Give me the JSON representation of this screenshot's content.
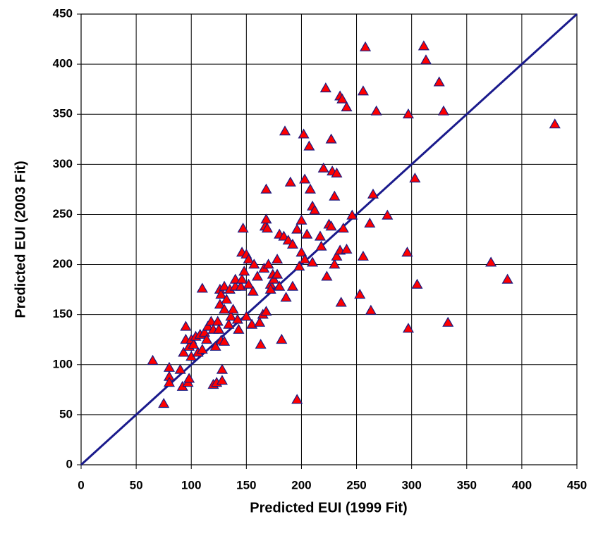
{
  "chart_data": {
    "type": "scatter",
    "x_label": "Predicted EUI (1999 Fit)",
    "y_label": "Predicted EUI (2003 Fit)",
    "xlim": [
      0,
      450
    ],
    "ylim": [
      0,
      450
    ],
    "xticks": [
      0,
      50,
      100,
      150,
      200,
      250,
      300,
      350,
      400,
      450
    ],
    "yticks": [
      0,
      50,
      100,
      150,
      200,
      250,
      300,
      350,
      400,
      450
    ],
    "grid": true,
    "series": [
      {
        "color": "#ff0000",
        "edge_color": "#1a1a80",
        "x": [
          65,
          75,
          80,
          80,
          80,
          90,
          92,
          93,
          95,
          95,
          97,
          98,
          98,
          100,
          100,
          102,
          104,
          106,
          108,
          110,
          110,
          112,
          114,
          115,
          118,
          120,
          120,
          122,
          123,
          124,
          125,
          126,
          126,
          127,
          127,
          128,
          128,
          130,
          130,
          130,
          132,
          134,
          135,
          136,
          138,
          140,
          140,
          142,
          143,
          145,
          146,
          146,
          147,
          148,
          150,
          150,
          152,
          152,
          155,
          156,
          157,
          160,
          162,
          163,
          165,
          166,
          167,
          168,
          168,
          168,
          169,
          170,
          172,
          172,
          174,
          175,
          178,
          178,
          180,
          180,
          182,
          184,
          185,
          186,
          188,
          190,
          192,
          192,
          196,
          196,
          198,
          200,
          200,
          202,
          203,
          203,
          205,
          207,
          208,
          210,
          210,
          212,
          217,
          218,
          220,
          222,
          223,
          225,
          227,
          227,
          228,
          230,
          230,
          232,
          232,
          235,
          235,
          236,
          237,
          238,
          241,
          241,
          246,
          253,
          256,
          256,
          258,
          262,
          263,
          265,
          268,
          278,
          296,
          297,
          297,
          303,
          305,
          311,
          313,
          325,
          329,
          333,
          372,
          387,
          430
        ],
        "values": [
          104,
          61,
          97,
          88,
          82,
          95,
          78,
          112,
          125,
          138,
          82,
          86,
          118,
          108,
          125,
          120,
          128,
          112,
          130,
          176,
          115,
          132,
          125,
          138,
          143,
          135,
          80,
          118,
          82,
          143,
          135,
          175,
          160,
          170,
          124,
          84,
          95,
          178,
          123,
          155,
          165,
          140,
          175,
          148,
          155,
          178,
          185,
          145,
          135,
          178,
          185,
          212,
          236,
          193,
          210,
          148,
          205,
          180,
          140,
          173,
          200,
          188,
          142,
          120,
          150,
          196,
          238,
          245,
          275,
          153,
          236,
          200,
          180,
          175,
          190,
          185,
          190,
          205,
          230,
          178,
          125,
          228,
          333,
          167,
          224,
          282,
          220,
          178,
          65,
          235,
          198,
          212,
          244,
          330,
          205,
          285,
          230,
          318,
          275,
          202,
          258,
          254,
          228,
          218,
          296,
          376,
          188,
          240,
          238,
          325,
          293,
          200,
          268,
          208,
          291,
          368,
          214,
          162,
          365,
          236,
          357,
          215,
          249,
          170,
          208,
          373,
          417,
          241,
          154,
          270,
          353,
          249,
          212,
          350,
          136,
          286,
          180,
          418,
          404,
          382,
          353,
          142,
          202,
          185,
          340
        ]
      }
    ],
    "reference_line": {
      "color": "#1a1a8c"
    }
  }
}
